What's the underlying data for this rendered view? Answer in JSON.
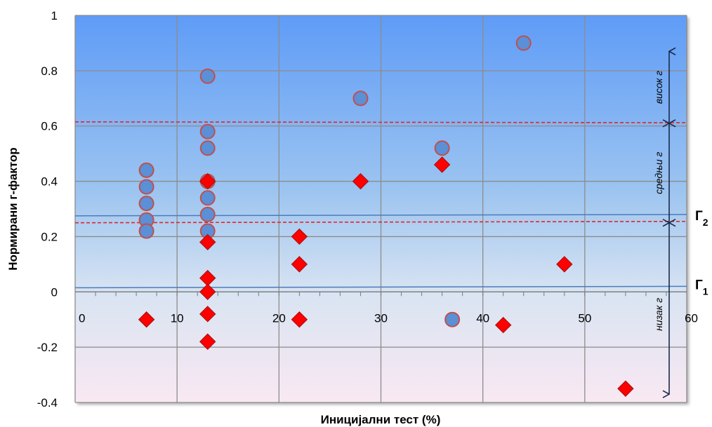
{
  "chart_data": {
    "type": "scatter",
    "title": "",
    "xlabel": "Иницијални тест (%)",
    "ylabel": "Нормирани г-фактор",
    "xlim": [
      0,
      60
    ],
    "ylim": [
      -0.4,
      1
    ],
    "x_ticks": [
      "0",
      "10",
      "20",
      "30",
      "40",
      "50",
      "60"
    ],
    "y_ticks": [
      "-0.4",
      "-0.2",
      "0",
      "0.2",
      "0.4",
      "0.6",
      "0.8",
      "1"
    ],
    "grid": true,
    "series": [
      {
        "marker": "circle",
        "color": "#5b8fd6",
        "points": [
          [
            7,
            0.44
          ],
          [
            7,
            0.38
          ],
          [
            7,
            0.32
          ],
          [
            7,
            0.26
          ],
          [
            7,
            0.22
          ],
          [
            13,
            0.78
          ],
          [
            13,
            0.58
          ],
          [
            13,
            0.52
          ],
          [
            13,
            0.4
          ],
          [
            13,
            0.34
          ],
          [
            13,
            0.28
          ],
          [
            13,
            0.22
          ],
          [
            28,
            0.7
          ],
          [
            36,
            0.52
          ],
          [
            37,
            -0.1
          ],
          [
            44,
            0.9
          ]
        ]
      },
      {
        "marker": "diamond",
        "color": "#ff0000",
        "points": [
          [
            7,
            -0.1
          ],
          [
            13,
            0.4
          ],
          [
            13,
            0.18
          ],
          [
            13,
            0.05
          ],
          [
            13,
            0.0
          ],
          [
            13,
            -0.08
          ],
          [
            13,
            -0.18
          ],
          [
            22,
            0.2
          ],
          [
            22,
            0.1
          ],
          [
            22,
            -0.1
          ],
          [
            28,
            0.4
          ],
          [
            36,
            0.46
          ],
          [
            42,
            -0.12
          ],
          [
            48,
            0.1
          ],
          [
            54,
            -0.35
          ]
        ]
      }
    ],
    "reference_lines": [
      {
        "style": "dashed",
        "color": "#e0262b",
        "y_start": 0.615,
        "y_end": 0.612
      },
      {
        "style": "dashed",
        "color": "#e0262b",
        "y_start": 0.25,
        "y_end": 0.255
      },
      {
        "style": "solid",
        "color": "#4a7cbf",
        "y_start": 0.275,
        "y_end": 0.28
      },
      {
        "style": "solid",
        "color": "#4a7cbf",
        "y_start": 0.015,
        "y_end": 0.02
      }
    ],
    "zones": [
      {
        "label": "висок г",
        "y_from": 0.61,
        "y_to": 0.87
      },
      {
        "label": "средњи г",
        "y_from": 0.25,
        "y_to": 0.61
      },
      {
        "label": "низак г",
        "y_from": -0.37,
        "y_to": 0.25
      }
    ],
    "gamma_labels": [
      {
        "base": "Г",
        "sub": "2",
        "y": 0.27
      },
      {
        "base": "Г",
        "sub": "1",
        "y": 0.02
      }
    ]
  }
}
